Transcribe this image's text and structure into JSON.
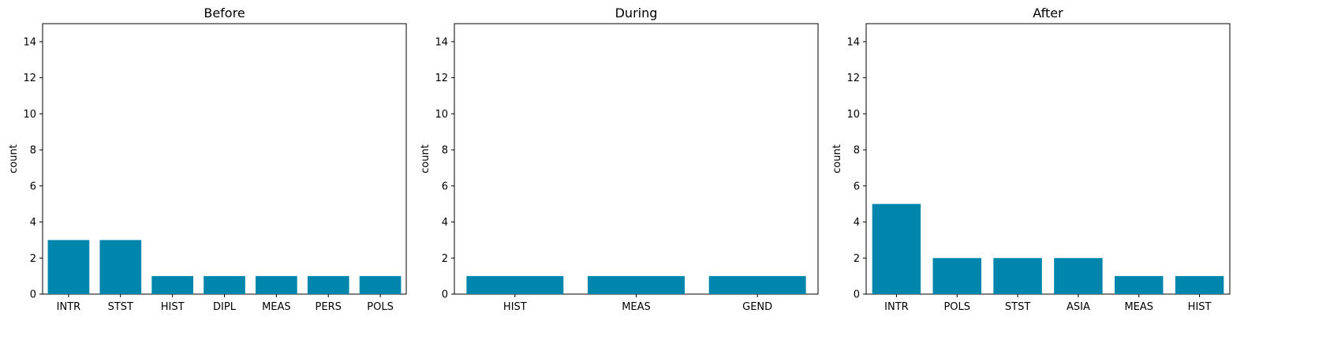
{
  "chart_data": [
    {
      "type": "bar",
      "title": "Before",
      "xlabel": "",
      "ylabel": "count",
      "ylim": [
        0,
        15
      ],
      "yticks": [
        0,
        2,
        4,
        6,
        8,
        10,
        12,
        14
      ],
      "categories": [
        "INTR",
        "STST",
        "HIST",
        "DIPL",
        "MEAS",
        "PERS",
        "POLS"
      ],
      "values": [
        3,
        3,
        1,
        1,
        1,
        1,
        1
      ],
      "grid": false
    },
    {
      "type": "bar",
      "title": "During",
      "xlabel": "",
      "ylabel": "count",
      "ylim": [
        0,
        15
      ],
      "yticks": [
        0,
        2,
        4,
        6,
        8,
        10,
        12,
        14
      ],
      "categories": [
        "HIST",
        "MEAS",
        "GEND"
      ],
      "values": [
        1,
        1,
        1
      ],
      "grid": false
    },
    {
      "type": "bar",
      "title": "After",
      "xlabel": "",
      "ylabel": "count",
      "ylim": [
        0,
        15
      ],
      "yticks": [
        0,
        2,
        4,
        6,
        8,
        10,
        12,
        14
      ],
      "categories": [
        "INTR",
        "POLS",
        "STST",
        "ASIA",
        "MEAS",
        "HIST"
      ],
      "values": [
        5,
        2,
        2,
        2,
        1,
        1
      ],
      "grid": false
    }
  ],
  "colors": {
    "bar": "#0086ad",
    "axis": "#000000"
  }
}
